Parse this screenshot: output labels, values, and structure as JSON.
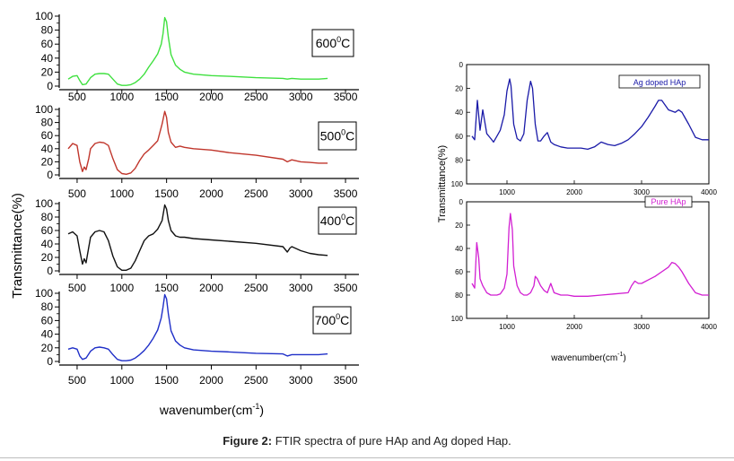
{
  "figure": {
    "caption_prefix": "Figure 2:",
    "caption_text": " FTIR spectra of pure HAp and Ag doped Hap."
  },
  "colors": {
    "p600": "#3fe03f",
    "p500": "#c0362c",
    "p400": "#111111",
    "p700": "#1f2fc8",
    "ag": "#1a1aa8",
    "pure": "#d21fd2"
  },
  "chart_data": [
    {
      "type": "line",
      "id": "left-stack",
      "xlabel": "wavenumber(cm",
      "xlabel_sup": "-1",
      "xlabel_end": ")",
      "ylabel": "Transmittance(%)",
      "xlim": [
        300,
        3650
      ],
      "ylim": [
        0,
        100
      ],
      "xticks": [
        500,
        1000,
        1500,
        2000,
        2500,
        3000,
        3500
      ],
      "yticks": [
        0,
        20,
        40,
        60,
        80,
        100
      ],
      "panels": [
        {
          "label": "600°C",
          "label_main": "600",
          "label_sup": "0",
          "label_unit": "C",
          "color_key": "p600",
          "x": [
            400,
            450,
            500,
            530,
            560,
            600,
            650,
            700,
            750,
            800,
            850,
            900,
            950,
            1000,
            1050,
            1100,
            1150,
            1200,
            1250,
            1300,
            1350,
            1400,
            1440,
            1460,
            1480,
            1500,
            1520,
            1550,
            1600,
            1650,
            1700,
            1800,
            2000,
            2200,
            2500,
            2800,
            2850,
            2900,
            3000,
            3100,
            3200,
            3300
          ],
          "y": [
            10,
            14,
            15,
            8,
            2,
            3,
            12,
            17,
            18,
            18,
            17,
            10,
            3,
            1,
            1,
            2,
            5,
            10,
            17,
            27,
            36,
            46,
            60,
            75,
            98,
            92,
            70,
            45,
            30,
            24,
            20,
            17,
            15,
            14,
            12,
            11,
            10,
            11,
            10,
            10,
            10,
            11
          ]
        },
        {
          "label": "500°C",
          "label_main": "500",
          "label_sup": "0",
          "label_unit": "C",
          "color_key": "p500",
          "x": [
            400,
            450,
            500,
            530,
            560,
            580,
            600,
            630,
            650,
            700,
            750,
            800,
            850,
            900,
            950,
            1000,
            1050,
            1100,
            1150,
            1200,
            1250,
            1300,
            1350,
            1400,
            1450,
            1480,
            1500,
            1520,
            1550,
            1600,
            1650,
            1700,
            1800,
            2000,
            2200,
            2500,
            2800,
            2850,
            2900,
            3000,
            3100,
            3200,
            3300
          ],
          "y": [
            40,
            48,
            45,
            20,
            5,
            12,
            8,
            25,
            40,
            48,
            50,
            49,
            45,
            25,
            8,
            2,
            1,
            3,
            10,
            22,
            32,
            38,
            45,
            52,
            78,
            97,
            88,
            65,
            50,
            42,
            44,
            42,
            40,
            38,
            34,
            30,
            24,
            20,
            23,
            20,
            19,
            18,
            18
          ]
        },
        {
          "label": "400°C",
          "label_main": "400",
          "label_sup": "0",
          "label_unit": "C",
          "color_key": "p400",
          "x": [
            400,
            450,
            500,
            530,
            560,
            580,
            600,
            630,
            650,
            700,
            750,
            800,
            850,
            900,
            950,
            1000,
            1050,
            1100,
            1150,
            1200,
            1250,
            1300,
            1350,
            1400,
            1450,
            1480,
            1500,
            1520,
            1550,
            1600,
            1650,
            1700,
            1800,
            2000,
            2200,
            2500,
            2800,
            2850,
            2880,
            2900,
            3000,
            3100,
            3200,
            3300
          ],
          "y": [
            55,
            58,
            52,
            30,
            10,
            18,
            12,
            35,
            50,
            58,
            60,
            58,
            45,
            22,
            6,
            1,
            1,
            4,
            15,
            30,
            45,
            52,
            55,
            62,
            75,
            98,
            92,
            75,
            60,
            52,
            50,
            50,
            48,
            46,
            44,
            41,
            36,
            28,
            34,
            36,
            30,
            26,
            24,
            23
          ]
        },
        {
          "label": "700°C",
          "label_main": "700",
          "label_sup": "0",
          "label_unit": "C",
          "color_key": "p700",
          "x": [
            400,
            450,
            500,
            530,
            560,
            600,
            650,
            700,
            750,
            800,
            850,
            900,
            950,
            1000,
            1050,
            1100,
            1150,
            1200,
            1250,
            1300,
            1350,
            1400,
            1440,
            1460,
            1480,
            1500,
            1520,
            1550,
            1600,
            1650,
            1700,
            1800,
            2000,
            2200,
            2500,
            2800,
            2850,
            2900,
            3000,
            3100,
            3200,
            3300
          ],
          "y": [
            18,
            20,
            18,
            8,
            3,
            5,
            15,
            20,
            21,
            20,
            18,
            10,
            3,
            1,
            1,
            2,
            5,
            10,
            16,
            24,
            34,
            46,
            64,
            80,
            98,
            92,
            70,
            45,
            30,
            24,
            20,
            17,
            15,
            14,
            12,
            11,
            8,
            10,
            10,
            10,
            10,
            11
          ]
        }
      ]
    },
    {
      "type": "line",
      "id": "right-stack",
      "xlabel": "wavenumber(cm",
      "xlabel_sup": "-1",
      "xlabel_end": ")",
      "ylabel": "Transmittance(%)",
      "xlim": [
        400,
        4000
      ],
      "ylim": [
        0,
        100
      ],
      "y_inverted": true,
      "xticks": [
        1000,
        2000,
        3000,
        4000
      ],
      "yticks": [
        0,
        20,
        40,
        60,
        80,
        100
      ],
      "panels": [
        {
          "label": "Ag doped HAp",
          "color_key": "ag",
          "x": [
            480,
            520,
            560,
            600,
            640,
            700,
            760,
            800,
            850,
            900,
            960,
            1000,
            1040,
            1060,
            1100,
            1150,
            1200,
            1250,
            1300,
            1350,
            1380,
            1420,
            1460,
            1500,
            1550,
            1600,
            1650,
            1700,
            1800,
            1900,
            2000,
            2100,
            2200,
            2300,
            2400,
            2500,
            2600,
            2700,
            2800,
            2900,
            3000,
            3100,
            3200,
            3250,
            3300,
            3350,
            3400,
            3450,
            3500,
            3550,
            3600,
            3700,
            3800,
            3900,
            4000
          ],
          "y": [
            60,
            63,
            30,
            55,
            38,
            58,
            62,
            65,
            60,
            55,
            42,
            22,
            12,
            18,
            50,
            62,
            64,
            58,
            30,
            14,
            20,
            50,
            64,
            64,
            60,
            57,
            65,
            67,
            69,
            70,
            70,
            70,
            71,
            69,
            65,
            67,
            68,
            66,
            63,
            58,
            52,
            44,
            35,
            30,
            30,
            34,
            38,
            39,
            40,
            38,
            40,
            50,
            61,
            63,
            63
          ]
        },
        {
          "label": "Pure HAp",
          "color_key": "pure",
          "x": [
            480,
            520,
            550,
            580,
            600,
            640,
            700,
            760,
            800,
            850,
            900,
            960,
            1000,
            1030,
            1050,
            1080,
            1100,
            1150,
            1200,
            1250,
            1300,
            1350,
            1400,
            1420,
            1450,
            1500,
            1550,
            1600,
            1650,
            1700,
            1800,
            1900,
            2000,
            2200,
            2400,
            2600,
            2800,
            2850,
            2900,
            2950,
            3000,
            3100,
            3200,
            3300,
            3400,
            3450,
            3500,
            3550,
            3600,
            3700,
            3800,
            3900,
            4000
          ],
          "y": [
            70,
            74,
            35,
            48,
            66,
            72,
            78,
            80,
            80,
            80,
            79,
            74,
            62,
            22,
            10,
            24,
            55,
            72,
            78,
            80,
            80,
            78,
            72,
            64,
            66,
            72,
            76,
            78,
            70,
            78,
            80,
            80,
            81,
            81,
            80,
            79,
            78,
            72,
            68,
            70,
            70,
            67,
            64,
            60,
            56,
            52,
            53,
            56,
            60,
            70,
            78,
            80,
            80
          ]
        }
      ]
    }
  ]
}
